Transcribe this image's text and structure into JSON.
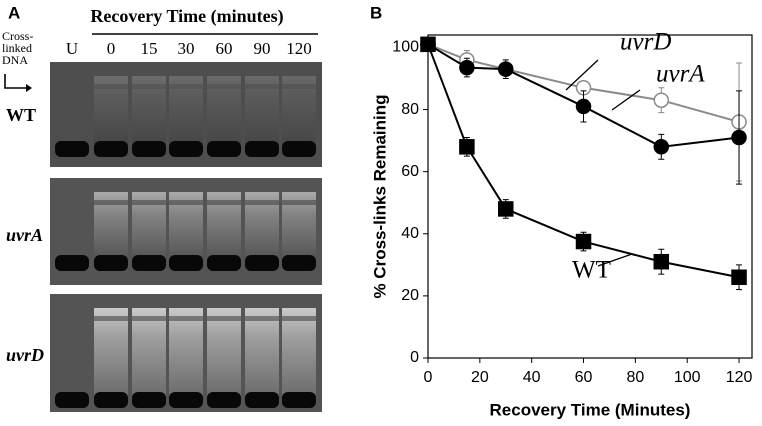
{
  "panel_a": {
    "letter": "A",
    "title": "Recovery Time (minutes)",
    "lanes": [
      "U",
      "0",
      "15",
      "30",
      "60",
      "90",
      "120"
    ],
    "crosslinked_label": [
      "Cross-",
      "linked",
      "DNA"
    ],
    "rows": [
      "WT",
      "uvrA",
      "uvrD"
    ]
  },
  "chart_data": {
    "type": "line",
    "letter": "B",
    "x_label": "Recovery Time (Minutes)",
    "y_label": "% Cross-links Remaining",
    "x": [
      0,
      15,
      30,
      60,
      90,
      120
    ],
    "xlim": [
      0,
      125
    ],
    "xticks": [
      0,
      20,
      40,
      60,
      80,
      100,
      120
    ],
    "ylim": [
      0,
      104
    ],
    "yticks": [
      0,
      20,
      40,
      60,
      80,
      100
    ],
    "grid": false,
    "series": [
      {
        "name": "uvrD",
        "color": "#8a8a8a",
        "marker": "circle",
        "marker_fill": "#ffffff",
        "italic": true,
        "values": [
          101,
          96,
          93,
          87,
          83,
          76
        ],
        "errors": [
          0,
          3,
          2,
          2,
          4,
          19
        ]
      },
      {
        "name": "uvrA",
        "color": "#000000",
        "marker": "circle",
        "marker_fill": "#000000",
        "italic": true,
        "values": [
          101,
          93.5,
          93,
          81,
          68,
          71
        ],
        "errors": [
          0,
          3,
          3,
          5,
          4,
          15
        ]
      },
      {
        "name": "WT",
        "color": "#000000",
        "marker": "square",
        "marker_fill": "#000000",
        "italic": false,
        "values": [
          101,
          68,
          48,
          37.5,
          31,
          26
        ],
        "errors": [
          0,
          3,
          3,
          3,
          4,
          4
        ]
      }
    ]
  }
}
